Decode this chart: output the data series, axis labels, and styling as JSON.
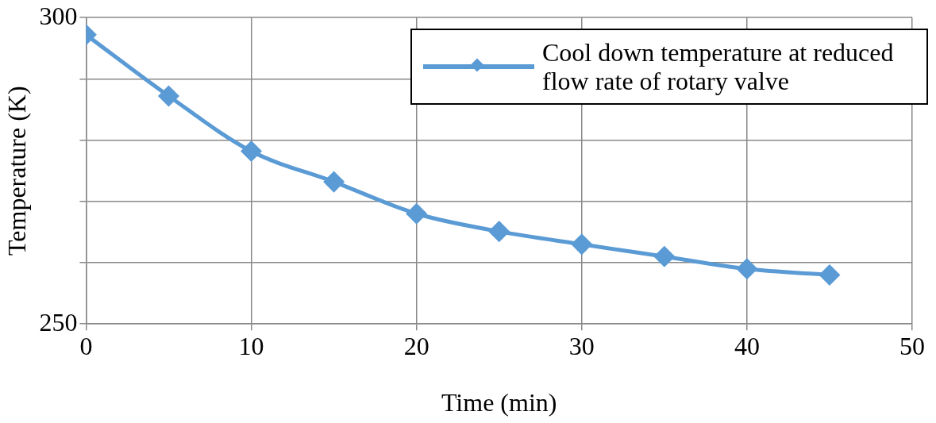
{
  "chart_data": {
    "type": "line",
    "xlabel": "Time (min)",
    "ylabel": "Temperature (K)",
    "x": [
      0,
      5,
      10,
      15,
      20,
      25,
      30,
      35,
      40,
      45
    ],
    "series": [
      {
        "name": "Cool down temperature at reduced flow rate of rotary valve",
        "color": "#5b9bd5",
        "values": [
          297.2,
          287.2,
          278.2,
          273.2,
          268.0,
          265.1,
          263.0,
          261.0,
          259.0,
          258.0
        ]
      }
    ],
    "xlim": [
      0,
      50
    ],
    "xticks": [
      0,
      10,
      20,
      30,
      40,
      50
    ],
    "ylim": [
      250,
      300
    ],
    "yticks": [
      250,
      {
        "value": 260,
        "label": null
      },
      {
        "value": 270,
        "label": null
      },
      {
        "value": 280,
        "label": null
      },
      {
        "value": 290,
        "label": null
      },
      300
    ],
    "grid": true,
    "legend": "top right",
    "marker": "diamond",
    "line_style": "solid"
  }
}
